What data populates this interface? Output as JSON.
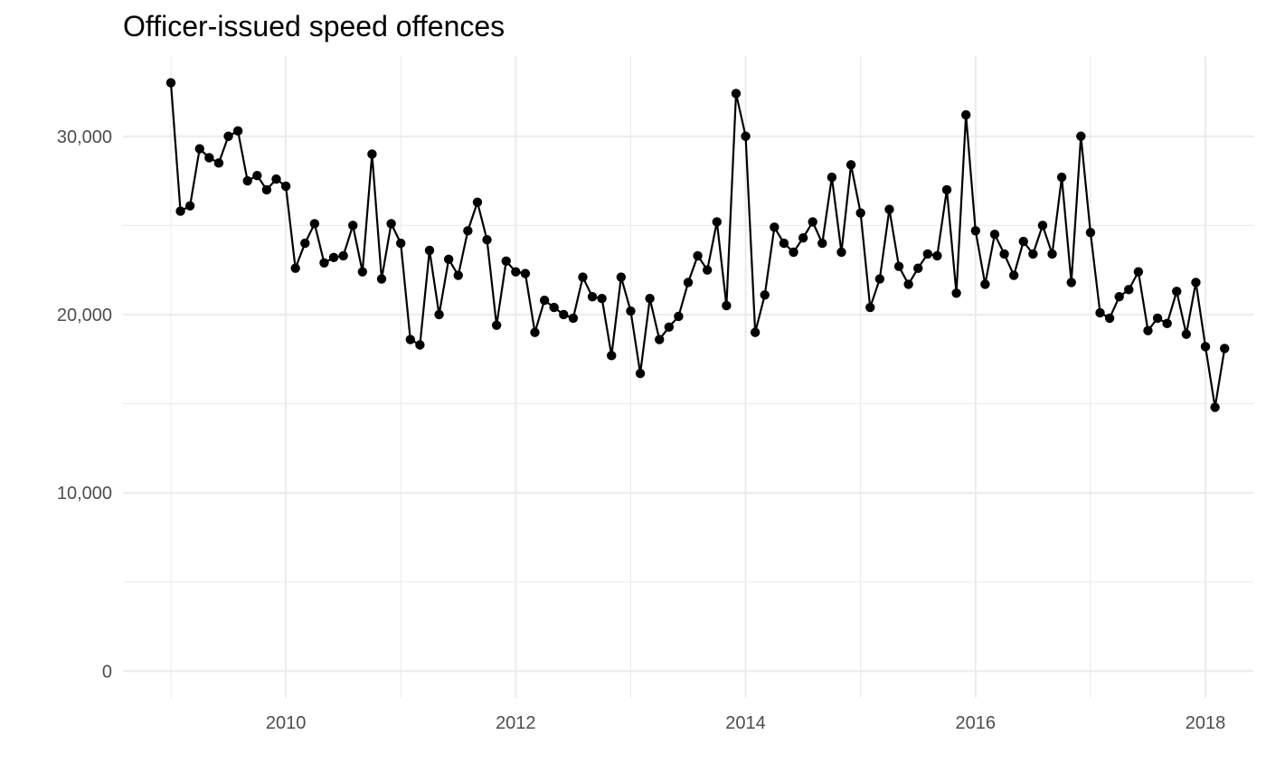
{
  "chart_data": {
    "type": "line",
    "title": "Officer-issued speed offences",
    "xlabel": "",
    "ylabel": "",
    "x_axis": {
      "type": "date",
      "range": [
        "2008-08-01",
        "2018-06-01"
      ],
      "major_ticks": [
        "2010-01-01",
        "2012-01-01",
        "2014-01-01",
        "2016-01-01",
        "2018-01-01"
      ],
      "major_tick_labels": [
        "2010",
        "2012",
        "2014",
        "2016",
        "2018"
      ],
      "minor_ticks": [
        "2009-01-01",
        "2011-01-01",
        "2013-01-01",
        "2015-01-01",
        "2017-01-01"
      ]
    },
    "y_axis": {
      "range": [
        -1500,
        34500
      ],
      "major_ticks": [
        0,
        10000,
        20000,
        30000
      ],
      "major_tick_labels": [
        "0",
        "10,000",
        "20,000",
        "30,000"
      ],
      "minor_ticks": [
        5000,
        15000,
        25000
      ]
    },
    "grid": true,
    "legend": "none",
    "colors": {
      "series": "#000000",
      "grid": "#ebebeb",
      "tick_text": "#4d4d4d"
    },
    "series": [
      {
        "start": "2009-01",
        "frequency": "monthly",
        "values": [
          33000,
          25800,
          26100,
          29300,
          28800,
          28500,
          30000,
          30300,
          27500,
          27800,
          27000,
          27600,
          27200,
          22600,
          24000,
          25100,
          22900,
          23200,
          23300,
          25000,
          22400,
          29000,
          22000,
          25100,
          24000,
          18600,
          18300,
          23600,
          20000,
          23100,
          22200,
          24700,
          26300,
          24200,
          19400,
          23000,
          22400,
          22300,
          19000,
          20800,
          20400,
          20000,
          19800,
          22100,
          21000,
          20900,
          17700,
          22100,
          20200,
          16700,
          20900,
          18600,
          19300,
          19900,
          21800,
          23300,
          22500,
          25200,
          20500,
          32400,
          30000,
          19000,
          21100,
          24900,
          24000,
          23500,
          24300,
          25200,
          24000,
          27700,
          23500,
          28400,
          25700,
          20400,
          22000,
          25900,
          22700,
          21700,
          22600,
          23400,
          23300,
          27000,
          21200,
          31200,
          24700,
          21700,
          24500,
          23400,
          22200,
          24100,
          23400,
          25000,
          23400,
          27700,
          21800,
          30000,
          24600,
          20100,
          19800,
          21000,
          21400,
          22400,
          19100,
          19800,
          19500,
          21300,
          18900,
          21800,
          18200,
          14800,
          18100
        ]
      }
    ]
  }
}
